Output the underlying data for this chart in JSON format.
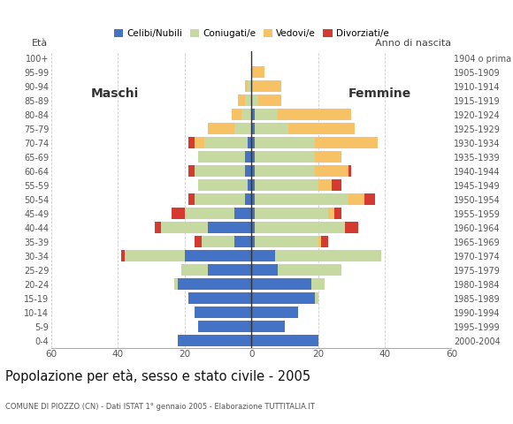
{
  "age_groups": [
    "0-4",
    "5-9",
    "10-14",
    "15-19",
    "20-24",
    "25-29",
    "30-34",
    "35-39",
    "40-44",
    "45-49",
    "50-54",
    "55-59",
    "60-64",
    "65-69",
    "70-74",
    "75-79",
    "80-84",
    "85-89",
    "90-94",
    "95-99",
    "100+"
  ],
  "birth_years": [
    "2000-2004",
    "1995-1999",
    "1990-1994",
    "1985-1989",
    "1980-1984",
    "1975-1979",
    "1970-1974",
    "1965-1969",
    "1960-1964",
    "1955-1959",
    "1950-1954",
    "1945-1949",
    "1940-1944",
    "1935-1939",
    "1930-1934",
    "1925-1929",
    "1920-1924",
    "1915-1919",
    "1910-1914",
    "1905-1909",
    "1904 o prima"
  ],
  "males": {
    "celibe": [
      22,
      16,
      17,
      19,
      22,
      13,
      20,
      5,
      13,
      5,
      2,
      1,
      2,
      2,
      1,
      0,
      0,
      0,
      0,
      0,
      0
    ],
    "coniugato": [
      0,
      0,
      0,
      0,
      1,
      8,
      18,
      10,
      14,
      15,
      15,
      15,
      15,
      14,
      13,
      5,
      3,
      2,
      1,
      0,
      0
    ],
    "vedovo": [
      0,
      0,
      0,
      0,
      0,
      0,
      0,
      0,
      0,
      0,
      0,
      0,
      0,
      0,
      3,
      8,
      3,
      2,
      1,
      0,
      0
    ],
    "divorziato": [
      0,
      0,
      0,
      0,
      0,
      0,
      1,
      2,
      2,
      4,
      2,
      0,
      2,
      0,
      2,
      0,
      0,
      0,
      0,
      0,
      0
    ]
  },
  "females": {
    "celibe": [
      20,
      10,
      14,
      19,
      18,
      8,
      7,
      1,
      1,
      1,
      1,
      1,
      1,
      1,
      1,
      1,
      1,
      0,
      0,
      0,
      0
    ],
    "coniugata": [
      0,
      0,
      0,
      1,
      4,
      19,
      32,
      19,
      27,
      22,
      28,
      19,
      18,
      18,
      18,
      10,
      7,
      2,
      0,
      0,
      0
    ],
    "vedova": [
      0,
      0,
      0,
      0,
      0,
      0,
      0,
      1,
      0,
      2,
      5,
      4,
      10,
      8,
      19,
      20,
      22,
      7,
      9,
      4,
      0
    ],
    "divorziata": [
      0,
      0,
      0,
      0,
      0,
      0,
      0,
      2,
      4,
      2,
      3,
      3,
      1,
      0,
      0,
      0,
      0,
      0,
      0,
      0,
      0
    ]
  },
  "colors": {
    "celibe": "#4472c4",
    "coniugato": "#c5d9a0",
    "vedovo": "#f6c265",
    "divorziato": "#d43a2f"
  },
  "title": "Popolazione per età, sesso e stato civile - 2005",
  "subtitle": "COMUNE DI PIOZZO (CN) - Dati ISTAT 1° gennaio 2005 - Elaborazione TUTTITALIA.IT",
  "xlabel_left": "Maschi",
  "xlabel_right": "Femmine",
  "ylabel_left": "Età",
  "ylabel_right": "Anno di nascita",
  "xlim": 60,
  "xticks": [
    60,
    40,
    20,
    0,
    20,
    40,
    60
  ],
  "legend_labels": [
    "Celibi/Nubili",
    "Coniugati/e",
    "Vedovi/e",
    "Divorziati/e"
  ],
  "bg_color": "#ffffff"
}
